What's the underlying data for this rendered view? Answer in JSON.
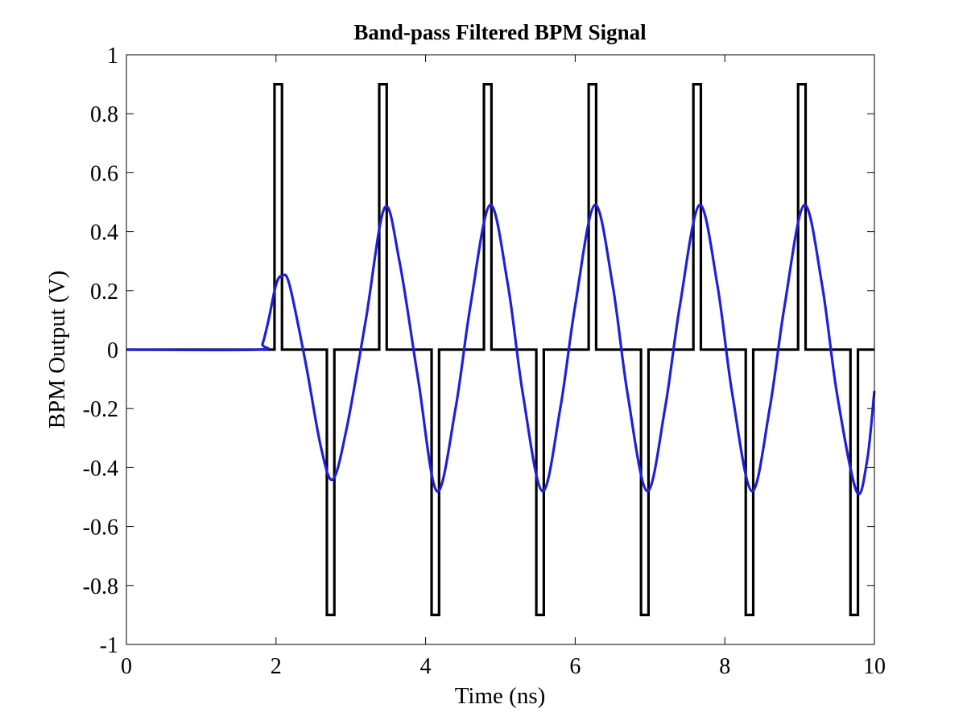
{
  "chart_data": {
    "type": "line",
    "title": "Band-pass Filtered BPM Signal",
    "xlabel": "Time (ns)",
    "ylabel": "BPM Output (V)",
    "xlim": [
      0,
      10
    ],
    "ylim": [
      -1,
      1
    ],
    "xticks": [
      0,
      2,
      4,
      6,
      8,
      10
    ],
    "yticks": [
      -1,
      -0.8,
      -0.6,
      -0.4,
      -0.2,
      0,
      0.2,
      0.4,
      0.6,
      0.8,
      1
    ],
    "xtick_labels": [
      "0",
      "2",
      "4",
      "6",
      "8",
      "10"
    ],
    "ytick_labels": [
      "-1",
      "-0.8",
      "-0.6",
      "-0.4",
      "-0.2",
      "0",
      "0.2",
      "0.4",
      "0.6",
      "0.8",
      "1"
    ],
    "grid": false,
    "legend": "none",
    "series": [
      {
        "color": "#000000",
        "style": "step",
        "x": [
          0,
          1.98,
          1.98,
          2.08,
          2.08,
          2.68,
          2.68,
          2.78,
          2.78,
          3.38,
          3.38,
          3.48,
          3.48,
          4.08,
          4.08,
          4.18,
          4.18,
          4.78,
          4.78,
          4.88,
          4.88,
          5.48,
          5.48,
          5.58,
          5.58,
          6.18,
          6.18,
          6.28,
          6.28,
          6.88,
          6.88,
          6.98,
          6.98,
          7.58,
          7.58,
          7.68,
          7.68,
          8.28,
          8.28,
          8.38,
          8.38,
          8.98,
          8.98,
          9.08,
          9.08,
          9.68,
          9.68,
          9.78,
          9.78,
          10
        ],
        "y": [
          0,
          0,
          0.9,
          0.9,
          0,
          0,
          -0.9,
          -0.9,
          0,
          0,
          0.9,
          0.9,
          0,
          0,
          -0.9,
          -0.9,
          0,
          0,
          0.9,
          0.9,
          0,
          0,
          -0.9,
          -0.9,
          0,
          0,
          0.9,
          0.9,
          0,
          0,
          -0.9,
          -0.9,
          0,
          0,
          0.9,
          0.9,
          0,
          0,
          -0.9,
          -0.9,
          0,
          0,
          0.9,
          0.9,
          0,
          0,
          -0.9,
          -0.9,
          0,
          0
        ]
      },
      {
        "color": "#1f1fdc",
        "style": "smooth",
        "x": [
          0,
          1.75,
          1.82,
          1.9,
          2.0,
          2.08,
          2.18,
          2.4,
          2.6,
          2.76,
          2.95,
          3.2,
          3.45,
          3.65,
          3.9,
          4.15,
          4.4,
          4.6,
          4.86,
          5.1,
          5.3,
          5.56,
          5.8,
          6.0,
          6.26,
          6.5,
          6.7,
          6.96,
          7.2,
          7.4,
          7.66,
          7.9,
          8.1,
          8.36,
          8.6,
          8.8,
          9.06,
          9.3,
          9.5,
          9.76,
          9.9,
          10.0
        ],
        "y": [
          0,
          0,
          0.02,
          0.1,
          0.22,
          0.25,
          0.22,
          -0.05,
          -0.33,
          -0.44,
          -0.26,
          0.1,
          0.48,
          0.3,
          -0.1,
          -0.48,
          -0.2,
          0.15,
          0.49,
          0.22,
          -0.15,
          -0.48,
          -0.2,
          0.15,
          0.49,
          0.22,
          -0.15,
          -0.48,
          -0.2,
          0.15,
          0.49,
          0.22,
          -0.15,
          -0.48,
          -0.2,
          0.15,
          0.49,
          0.22,
          -0.15,
          -0.48,
          -0.38,
          -0.14
        ]
      }
    ]
  }
}
